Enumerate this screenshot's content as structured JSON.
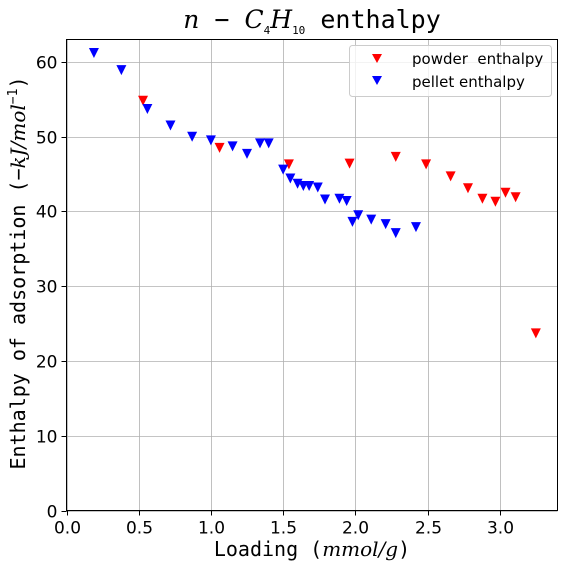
{
  "chart_data": {
    "type": "scatter",
    "title": {
      "math_n": "n",
      "math_minus": " − ",
      "math_c": "C",
      "math_sub4": "4",
      "math_h": "H",
      "math_sub10": "10",
      "text": " enthalpy"
    },
    "xlabel": {
      "text": "Loading (",
      "math": "mmol/g",
      "close": ")"
    },
    "ylabel": {
      "text": "Enthalpy of adsorption (−",
      "math_kj": "kJ/mol",
      "sup": "−1",
      "close": ")"
    },
    "xlim": [
      0,
      3.4
    ],
    "ylim": [
      0,
      63
    ],
    "xticks": [
      0.0,
      0.5,
      1.0,
      1.5,
      2.0,
      2.5,
      3.0
    ],
    "xtick_labels": [
      "0.0",
      "0.5",
      "1.0",
      "1.5",
      "2.0",
      "2.5",
      "3.0"
    ],
    "yticks": [
      0,
      10,
      20,
      30,
      40,
      50,
      60
    ],
    "ytick_labels": [
      "0",
      "10",
      "20",
      "30",
      "40",
      "50",
      "60"
    ],
    "grid": true,
    "legend_position": "top-right",
    "series": [
      {
        "name": "powder  enthalpy",
        "color": "#ff0000",
        "marker": "triangle-down",
        "points": [
          [
            0.53,
            54.8
          ],
          [
            1.06,
            48.5
          ],
          [
            1.54,
            46.3
          ],
          [
            1.96,
            46.4
          ],
          [
            2.28,
            47.3
          ],
          [
            2.49,
            46.3
          ],
          [
            2.66,
            44.7
          ],
          [
            2.78,
            43.1
          ],
          [
            2.88,
            41.7
          ],
          [
            2.97,
            41.3
          ],
          [
            3.04,
            42.5
          ],
          [
            3.11,
            41.9
          ],
          [
            3.25,
            23.7
          ]
        ]
      },
      {
        "name": "pellet enthalpy",
        "color": "#0000ff",
        "marker": "triangle-down",
        "points": [
          [
            0.19,
            61.2
          ],
          [
            0.38,
            58.9
          ],
          [
            0.56,
            53.7
          ],
          [
            0.72,
            51.5
          ],
          [
            0.87,
            50.0
          ],
          [
            1.0,
            49.5
          ],
          [
            1.15,
            48.7
          ],
          [
            1.25,
            47.7
          ],
          [
            1.34,
            49.1
          ],
          [
            1.4,
            49.1
          ],
          [
            1.5,
            45.6
          ],
          [
            1.55,
            44.4
          ],
          [
            1.6,
            43.7
          ],
          [
            1.64,
            43.4
          ],
          [
            1.68,
            43.4
          ],
          [
            1.74,
            43.2
          ],
          [
            1.79,
            41.6
          ],
          [
            1.89,
            41.7
          ],
          [
            1.94,
            41.4
          ],
          [
            1.98,
            38.6
          ],
          [
            2.02,
            39.5
          ],
          [
            2.11,
            38.9
          ],
          [
            2.21,
            38.3
          ],
          [
            2.28,
            37.1
          ],
          [
            2.42,
            37.9
          ]
        ]
      }
    ]
  }
}
